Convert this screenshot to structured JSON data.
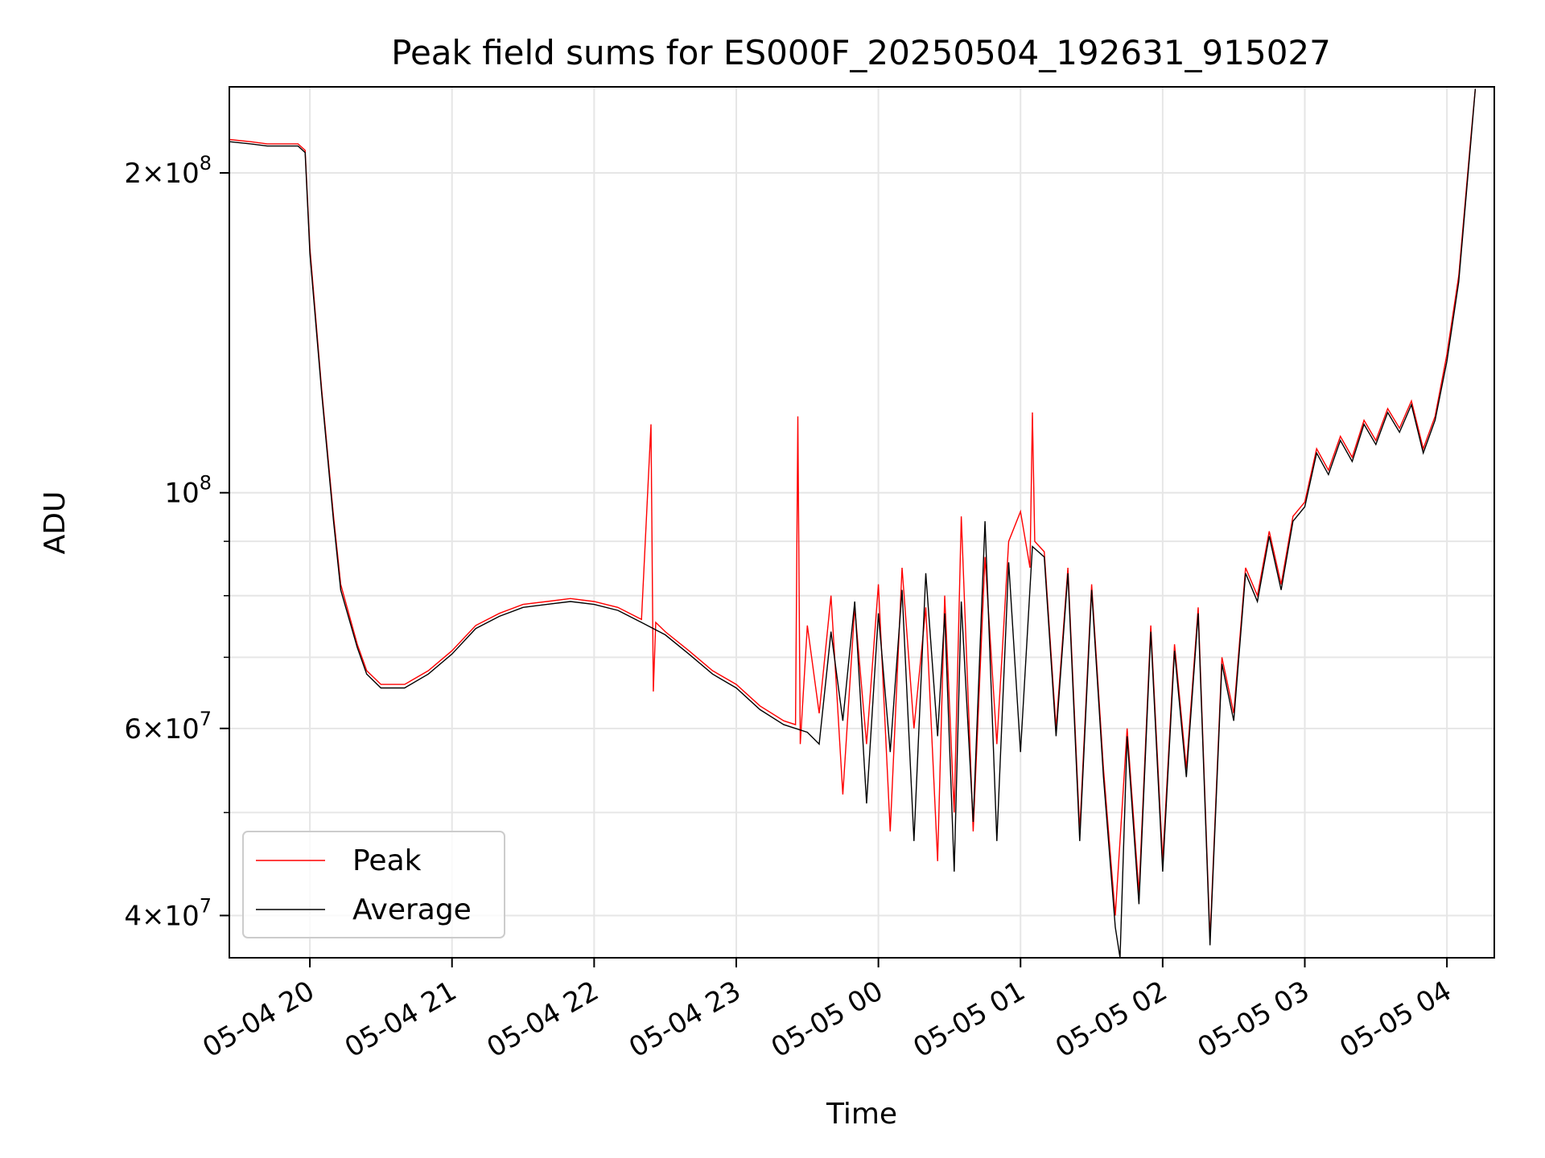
{
  "chart_data": {
    "type": "line",
    "title": "Peak field sums for ES000F_20250504_192631_915027",
    "xlabel": "Time",
    "ylabel": "ADU",
    "x_scale": "time",
    "y_scale": "log",
    "xlim": [
      "2025-05-04 19:26",
      "2025-05-05 04:20"
    ],
    "ylim": [
      36500000,
      241000000
    ],
    "grid": true,
    "legend_position": "lower-left",
    "x_tick_labels": [
      "05-04 20",
      "05-04 21",
      "05-04 22",
      "05-04 23",
      "05-05 00",
      "05-05 01",
      "05-05 02",
      "05-05 03",
      "05-05 04"
    ],
    "x_ticks": [
      "2025-05-04 20:00",
      "2025-05-04 21:00",
      "2025-05-04 22:00",
      "2025-05-04 23:00",
      "2025-05-05 00:00",
      "2025-05-05 01:00",
      "2025-05-05 02:00",
      "2025-05-05 03:00",
      "2025-05-05 04:00"
    ],
    "y_ticks": [
      {
        "value": 40000000,
        "mantissa": "4",
        "exponent": "7"
      },
      {
        "value": 60000000,
        "mantissa": "6",
        "exponent": "7"
      },
      {
        "value": 100000000,
        "mantissa": "",
        "exponent": "8"
      },
      {
        "value": 200000000,
        "mantissa": "2",
        "exponent": "8"
      }
    ],
    "y_minor_ticks": [
      50000000,
      70000000,
      80000000,
      90000000
    ],
    "series": [
      {
        "name": "Peak",
        "color": "#ff0000",
        "x": [
          "2025-05-04 19:26",
          "2025-05-04 19:35",
          "2025-05-04 19:42",
          "2025-05-04 19:46",
          "2025-05-04 19:50",
          "2025-05-04 19:55",
          "2025-05-04 19:58",
          "2025-05-04 20:00",
          "2025-05-04 20:05",
          "2025-05-04 20:10",
          "2025-05-04 20:13",
          "2025-05-04 20:20",
          "2025-05-04 20:24",
          "2025-05-04 20:30",
          "2025-05-04 20:40",
          "2025-05-04 20:50",
          "2025-05-04 21:00",
          "2025-05-04 21:10",
          "2025-05-04 21:20",
          "2025-05-04 21:30",
          "2025-05-04 21:40",
          "2025-05-04 21:50",
          "2025-05-04 22:00",
          "2025-05-04 22:10",
          "2025-05-04 22:20",
          "2025-05-04 22:24",
          "2025-05-04 22:25",
          "2025-05-04 22:26",
          "2025-05-04 22:30",
          "2025-05-04 22:40",
          "2025-05-04 22:50",
          "2025-05-04 23:00",
          "2025-05-04 23:10",
          "2025-05-04 23:20",
          "2025-05-04 23:25",
          "2025-05-04 23:26",
          "2025-05-04 23:27",
          "2025-05-04 23:30",
          "2025-05-04 23:35",
          "2025-05-04 23:40",
          "2025-05-04 23:45",
          "2025-05-04 23:50",
          "2025-05-04 23:55",
          "2025-05-05 00:00",
          "2025-05-05 00:05",
          "2025-05-05 00:10",
          "2025-05-05 00:15",
          "2025-05-05 00:20",
          "2025-05-05 00:25",
          "2025-05-05 00:28",
          "2025-05-05 00:32",
          "2025-05-05 00:35",
          "2025-05-05 00:40",
          "2025-05-05 00:45",
          "2025-05-05 00:50",
          "2025-05-05 00:55",
          "2025-05-05 01:00",
          "2025-05-05 01:04",
          "2025-05-05 01:05",
          "2025-05-05 01:06",
          "2025-05-05 01:10",
          "2025-05-05 01:15",
          "2025-05-05 01:20",
          "2025-05-05 01:25",
          "2025-05-05 01:30",
          "2025-05-05 01:35",
          "2025-05-05 01:40",
          "2025-05-05 01:45",
          "2025-05-05 01:50",
          "2025-05-05 01:55",
          "2025-05-05 02:00",
          "2025-05-05 02:05",
          "2025-05-05 02:10",
          "2025-05-05 02:15",
          "2025-05-05 02:20",
          "2025-05-05 02:25",
          "2025-05-05 02:30",
          "2025-05-05 02:35",
          "2025-05-05 02:40",
          "2025-05-05 02:45",
          "2025-05-05 02:50",
          "2025-05-05 02:55",
          "2025-05-05 03:00",
          "2025-05-05 03:05",
          "2025-05-05 03:10",
          "2025-05-05 03:15",
          "2025-05-05 03:20",
          "2025-05-05 03:25",
          "2025-05-05 03:30",
          "2025-05-05 03:35",
          "2025-05-05 03:40",
          "2025-05-05 03:45",
          "2025-05-05 03:50",
          "2025-05-05 03:55",
          "2025-05-05 04:00",
          "2025-05-05 04:05",
          "2025-05-05 04:10",
          "2025-05-05 04:12"
        ],
        "y": [
          215000000,
          214000000,
          213000000,
          213000000,
          213000000,
          213000000,
          210000000,
          170000000,
          125000000,
          95000000,
          82000000,
          72000000,
          68000000,
          66000000,
          66000000,
          68000000,
          71000000,
          75000000,
          77000000,
          78500000,
          79000000,
          79500000,
          79000000,
          78000000,
          76000000,
          116000000,
          65000000,
          75500000,
          74000000,
          71000000,
          68000000,
          66000000,
          63000000,
          61000000,
          60500000,
          118000000,
          58000000,
          75000000,
          62000000,
          80000000,
          52000000,
          78000000,
          58000000,
          82000000,
          48000000,
          85000000,
          60000000,
          78000000,
          45000000,
          80000000,
          50000000,
          95000000,
          48000000,
          87000000,
          58000000,
          90000000,
          96000000,
          85000000,
          119000000,
          90000000,
          88000000,
          60000000,
          85000000,
          48000000,
          82000000,
          55000000,
          40000000,
          60000000,
          42000000,
          75000000,
          45000000,
          72000000,
          55000000,
          78000000,
          38000000,
          70000000,
          62000000,
          85000000,
          80000000,
          92000000,
          82000000,
          95000000,
          98000000,
          110000000,
          105000000,
          113000000,
          108000000,
          117000000,
          112000000,
          120000000,
          115000000,
          122000000,
          110000000,
          118000000,
          135000000,
          160000000,
          215000000,
          240000000
        ]
      },
      {
        "name": "Average",
        "color": "#000000",
        "x": [
          "2025-05-04 19:26",
          "2025-05-04 19:35",
          "2025-05-04 19:42",
          "2025-05-04 19:46",
          "2025-05-04 19:50",
          "2025-05-04 19:55",
          "2025-05-04 19:58",
          "2025-05-04 20:00",
          "2025-05-04 20:05",
          "2025-05-04 20:10",
          "2025-05-04 20:13",
          "2025-05-04 20:20",
          "2025-05-04 20:24",
          "2025-05-04 20:30",
          "2025-05-04 20:40",
          "2025-05-04 20:50",
          "2025-05-04 21:00",
          "2025-05-04 21:10",
          "2025-05-04 21:20",
          "2025-05-04 21:30",
          "2025-05-04 21:40",
          "2025-05-04 21:50",
          "2025-05-04 22:00",
          "2025-05-04 22:10",
          "2025-05-04 22:20",
          "2025-05-04 22:30",
          "2025-05-04 22:40",
          "2025-05-04 22:50",
          "2025-05-04 23:00",
          "2025-05-04 23:10",
          "2025-05-04 23:20",
          "2025-05-04 23:25",
          "2025-05-04 23:30",
          "2025-05-04 23:35",
          "2025-05-04 23:40",
          "2025-05-04 23:45",
          "2025-05-04 23:50",
          "2025-05-04 23:55",
          "2025-05-05 00:00",
          "2025-05-05 00:05",
          "2025-05-05 00:10",
          "2025-05-05 00:15",
          "2025-05-05 00:20",
          "2025-05-05 00:25",
          "2025-05-05 00:28",
          "2025-05-05 00:32",
          "2025-05-05 00:35",
          "2025-05-05 00:40",
          "2025-05-05 00:45",
          "2025-05-05 00:50",
          "2025-05-05 00:55",
          "2025-05-05 01:00",
          "2025-05-05 01:05",
          "2025-05-05 01:10",
          "2025-05-05 01:15",
          "2025-05-05 01:20",
          "2025-05-05 01:25",
          "2025-05-05 01:30",
          "2025-05-05 01:35",
          "2025-05-05 01:40",
          "2025-05-05 01:42",
          "2025-05-05 01:45",
          "2025-05-05 01:50",
          "2025-05-05 01:55",
          "2025-05-05 02:00",
          "2025-05-05 02:05",
          "2025-05-05 02:10",
          "2025-05-05 02:15",
          "2025-05-05 02:20",
          "2025-05-05 02:25",
          "2025-05-05 02:30",
          "2025-05-05 02:35",
          "2025-05-05 02:40",
          "2025-05-05 02:45",
          "2025-05-05 02:50",
          "2025-05-05 02:55",
          "2025-05-05 03:00",
          "2025-05-05 03:05",
          "2025-05-05 03:10",
          "2025-05-05 03:15",
          "2025-05-05 03:20",
          "2025-05-05 03:25",
          "2025-05-05 03:30",
          "2025-05-05 03:35",
          "2025-05-05 03:40",
          "2025-05-05 03:45",
          "2025-05-05 03:50",
          "2025-05-05 03:55",
          "2025-05-05 04:00",
          "2025-05-05 04:05",
          "2025-05-05 04:10",
          "2025-05-05 04:12"
        ],
        "y": [
          214000000,
          213000000,
          212000000,
          212000000,
          212000000,
          212000000,
          209000000,
          168000000,
          124000000,
          94000000,
          81000000,
          71500000,
          67500000,
          65500000,
          65500000,
          67500000,
          70500000,
          74500000,
          76500000,
          78000000,
          78500000,
          79000000,
          78500000,
          77500000,
          75500000,
          73500000,
          70500000,
          67500000,
          65500000,
          62500000,
          60500000,
          60000000,
          59500000,
          58000000,
          74000000,
          61000000,
          79000000,
          51000000,
          77000000,
          57000000,
          81000000,
          47000000,
          84000000,
          59000000,
          77000000,
          44000000,
          79000000,
          49000000,
          94000000,
          47000000,
          86000000,
          57000000,
          89000000,
          87000000,
          59000000,
          84000000,
          47000000,
          81000000,
          54000000,
          39000000,
          36500000,
          59000000,
          41000000,
          74000000,
          44000000,
          71000000,
          54000000,
          77000000,
          37500000,
          69000000,
          61000000,
          84000000,
          79000000,
          91000000,
          81000000,
          94000000,
          97000000,
          109000000,
          104000000,
          112000000,
          107000000,
          116000000,
          111000000,
          119000000,
          114000000,
          121000000,
          109000000,
          117000000,
          133000000,
          158000000,
          213000000,
          240000000
        ]
      }
    ]
  }
}
